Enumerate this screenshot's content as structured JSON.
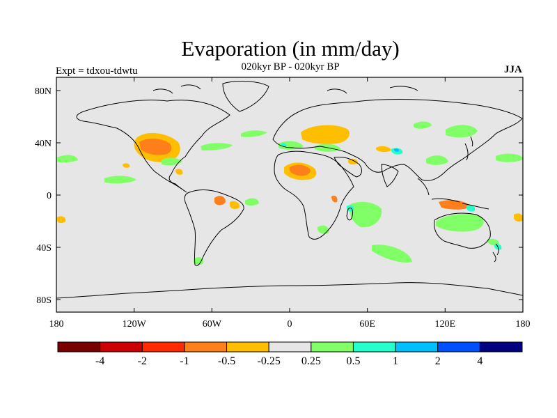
{
  "header": {
    "title": "Evaporation (in mm/day)",
    "subtitle": "020kyr BP - 020kyr BP",
    "expt_label": "Expt = tdxou-tdwtu",
    "season": "JJA"
  },
  "map": {
    "projection": "cylindrical-equidistant",
    "background_color": "#e6e6e6",
    "coastline_color": "#000000",
    "lon_ticks": [
      "180",
      "120W",
      "60W",
      "0",
      "60E",
      "120E",
      "180"
    ],
    "lat_ticks": [
      "80N",
      "40N",
      "0",
      "40S",
      "80S"
    ]
  },
  "colorbar": {
    "colors": [
      "#7a0000",
      "#cc0000",
      "#ff2a00",
      "#ff7f1a",
      "#ffbf00",
      "#e6e6e6",
      "#80ff66",
      "#26ffcc",
      "#00bfff",
      "#0050ff",
      "#000080"
    ],
    "labels": [
      "-4",
      "-2",
      "-1",
      "-0.5",
      "-0.25",
      "0.25",
      "0.5",
      "1",
      "2",
      "4"
    ]
  }
}
